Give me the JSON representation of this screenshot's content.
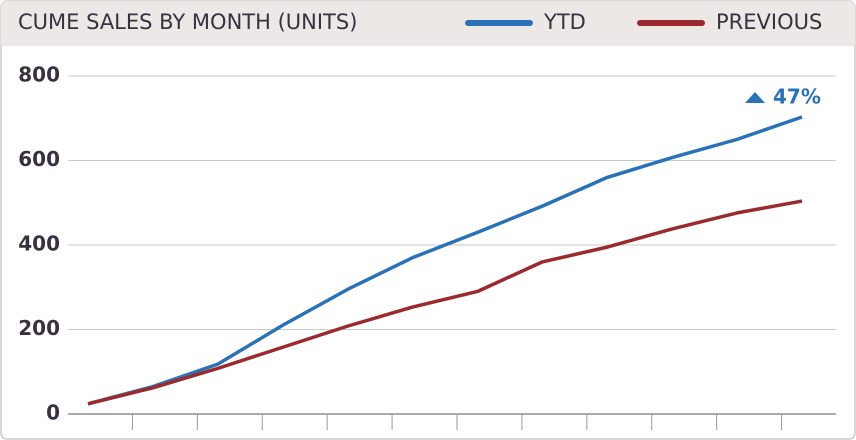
{
  "chart_data": {
    "type": "line",
    "title": "CUME SALES BY MONTH (UNITS)",
    "categories": [
      null,
      null,
      null,
      null,
      null,
      null,
      null,
      null,
      null,
      null,
      null,
      null
    ],
    "series": [
      {
        "name": "YTD",
        "color": "#2a72b8",
        "values": [
          24,
          65,
          118,
          210,
          295,
          370,
          430,
          492,
          560,
          607,
          650,
          703
        ]
      },
      {
        "name": "PREVIOUS",
        "color": "#9a2a2e",
        "values": [
          24,
          62,
          108,
          158,
          208,
          253,
          290,
          360,
          395,
          438,
          476,
          504
        ]
      }
    ],
    "annotation": "47%",
    "ylim": [
      0,
      800
    ],
    "yticks": [
      0,
      200,
      400,
      600,
      800
    ],
    "grid": true
  }
}
